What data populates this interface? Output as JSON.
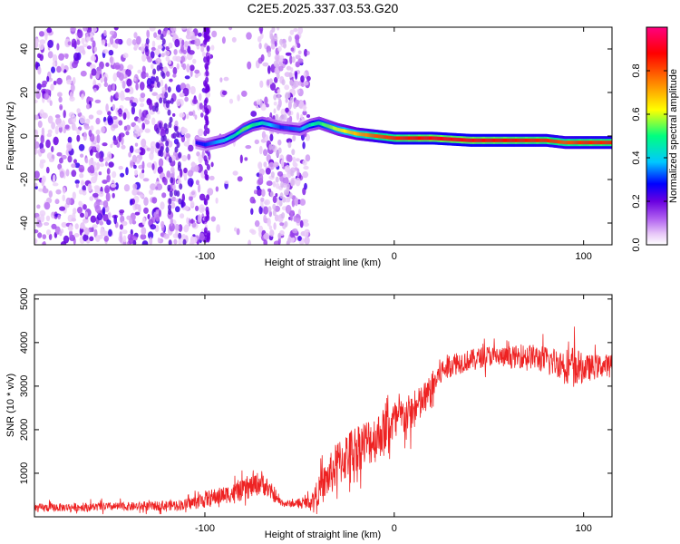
{
  "title": "C2E5.2025.337.03.53.G20",
  "chart_data": [
    {
      "type": "heatmap",
      "panel": "spectrogram",
      "xlabel": "Height of straight line (km)",
      "ylabel": "Frequency (Hz)",
      "xlim": [
        -190,
        115
      ],
      "ylim": [
        -50,
        50
      ],
      "xticks": [
        -100,
        0,
        100
      ],
      "xtick_labels": [
        "-100",
        "0",
        "100"
      ],
      "yticks": [
        -40,
        -20,
        0,
        20,
        40
      ],
      "ytick_labels": [
        "-40",
        "-20",
        "0",
        "20",
        "40"
      ],
      "grid": false,
      "colorbar": {
        "label": "Normalized spectral amplitude",
        "range": [
          0,
          1
        ],
        "ticks": [
          0.0,
          0.2,
          0.4,
          0.6,
          0.8
        ],
        "tick_labels": [
          "0.0",
          "0.2",
          "0.4",
          "0.6",
          "0.8"
        ],
        "colors": [
          "#ffffff",
          "#e8c8f8",
          "#b060f0",
          "#6a00e0",
          "#0000ff",
          "#00c8ff",
          "#00ff80",
          "#ffff00",
          "#ff8000",
          "#ff0000",
          "#ff0080"
        ]
      },
      "signal_track": {
        "description_height_km": [
          -105,
          -100,
          -95,
          -90,
          -85,
          -80,
          -75,
          -70,
          -60,
          -50,
          -45,
          -40,
          -30,
          -20,
          -10,
          0,
          20,
          40,
          60,
          80,
          90,
          100,
          115
        ],
        "frequency_hz": [
          -3,
          -4,
          -3,
          -2,
          0,
          3,
          5,
          6,
          4,
          3,
          5,
          6,
          3,
          1,
          0,
          -1,
          -1,
          -2,
          -2,
          -2,
          -3,
          -3,
          -3
        ],
        "amplitude": [
          0.25,
          0.3,
          0.35,
          0.4,
          0.45,
          0.55,
          0.5,
          0.45,
          0.3,
          0.35,
          0.45,
          0.5,
          0.6,
          0.7,
          0.8,
          0.85,
          0.9,
          0.9,
          0.88,
          0.85,
          0.8,
          0.85,
          0.85
        ]
      },
      "noise_region_height_km": [
        -190,
        -45
      ]
    },
    {
      "type": "line",
      "panel": "snr",
      "xlabel": "Height of straight line (km)",
      "ylabel": "SNR (10 * v/v)",
      "xlim": [
        -190,
        115
      ],
      "ylim": [
        0,
        5100
      ],
      "xticks": [
        -100,
        0,
        100
      ],
      "xtick_labels": [
        "-100",
        "0",
        "100"
      ],
      "yticks": [
        1000,
        2000,
        3000,
        4000,
        5000
      ],
      "ytick_labels": [
        "1000",
        "2000",
        "3000",
        "4000",
        "5000"
      ],
      "grid": false,
      "series": [
        {
          "name": "SNR",
          "color": "#ee2222",
          "x": [
            -190,
            -170,
            -150,
            -130,
            -110,
            -100,
            -90,
            -80,
            -70,
            -62,
            -58,
            -50,
            -44,
            -38,
            -30,
            -20,
            -10,
            0,
            10,
            18,
            24,
            30,
            40,
            50,
            60,
            70,
            80,
            90,
            95,
            100,
            115
          ],
          "y": [
            200,
            220,
            230,
            240,
            280,
            400,
            500,
            600,
            800,
            400,
            300,
            300,
            350,
            700,
            1200,
            1600,
            1800,
            2200,
            2400,
            2800,
            3300,
            3500,
            3600,
            3700,
            3650,
            3700,
            3600,
            3500,
            3450,
            3400,
            3500
          ],
          "spread": [
            120,
            120,
            120,
            130,
            160,
            250,
            250,
            300,
            350,
            120,
            100,
            100,
            200,
            500,
            700,
            700,
            700,
            600,
            550,
            500,
            400,
            350,
            300,
            300,
            300,
            350,
            400,
            450,
            600,
            400,
            300
          ]
        }
      ]
    }
  ]
}
